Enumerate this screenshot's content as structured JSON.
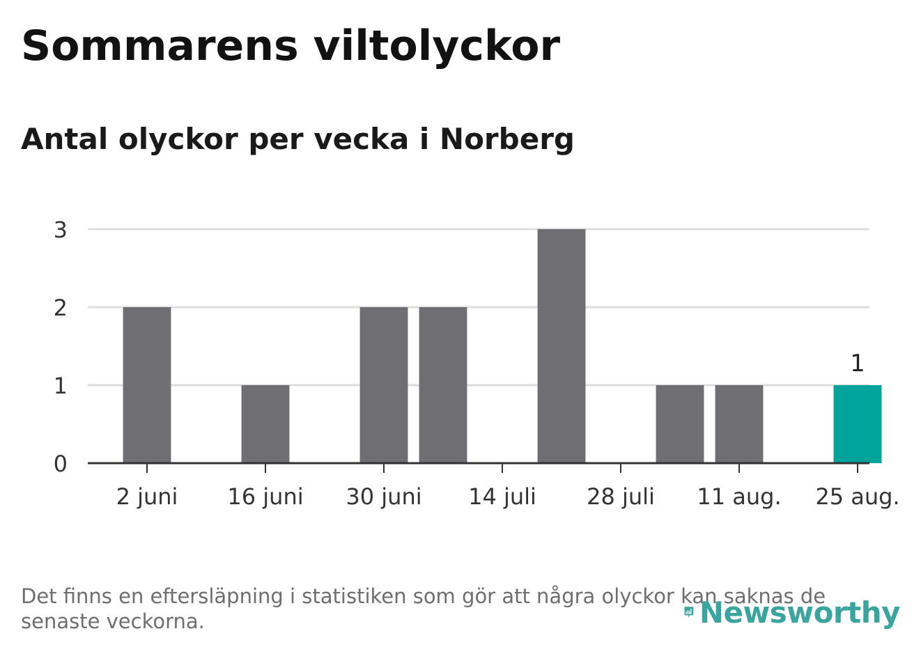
{
  "title": "Sommarens viltolyckor",
  "subtitle": "Antal olyckor per vecka i Norberg",
  "footnote": "Det finns en eftersläpning i statistiken som gör att några olyckor kan saknas de senaste veckorna.",
  "logo": {
    "text": "Newsworthy",
    "icon": "bar-chart-badge-icon"
  },
  "colors": {
    "bar": "#6f6e73",
    "highlight": "#00a49b",
    "grid": "#dddddd",
    "axis": "#333333"
  },
  "chart_data": {
    "type": "bar",
    "title": "Sommarens viltolyckor",
    "subtitle": "Antal olyckor per vecka i Norberg",
    "categories": [
      "2 juni",
      "9 juni",
      "16 juni",
      "23 juni",
      "30 juni",
      "7 juli",
      "14 juli",
      "21 juli",
      "28 juli",
      "4 aug.",
      "11 aug.",
      "18 aug.",
      "25 aug."
    ],
    "values": [
      2,
      0,
      1,
      0,
      2,
      2,
      0,
      3,
      0,
      1,
      1,
      0,
      1
    ],
    "tick_labels": [
      "2 juni",
      "16 juni",
      "30 juni",
      "14 juli",
      "28 juli",
      "11 aug.",
      "25 aug."
    ],
    "highlight_index": 12,
    "highlight_label": "1",
    "y_ticks": [
      0,
      1,
      2,
      3
    ],
    "ylim": [
      0,
      3
    ],
    "grid": true
  }
}
